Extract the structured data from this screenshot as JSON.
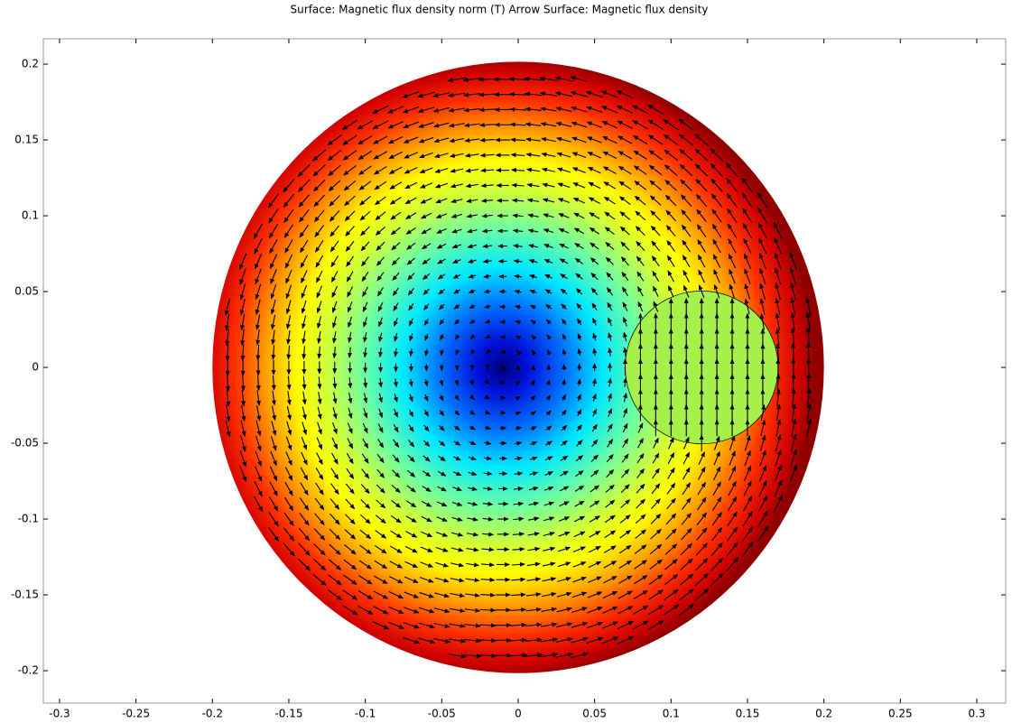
{
  "chart_data": {
    "type": "surface",
    "title": "Surface: Magnetic flux density norm (T)  Arrow Surface: Magnetic flux density",
    "xlim": [
      -0.3106,
      0.3189
    ],
    "ylim": [
      -0.2214,
      0.2167
    ],
    "xticks": [
      -0.3,
      -0.25,
      -0.2,
      -0.15,
      -0.1,
      -0.05,
      0,
      0.05,
      0.1,
      0.15,
      0.2,
      0.25,
      0.3
    ],
    "yticks": [
      -0.2,
      -0.15,
      -0.1,
      -0.05,
      0,
      0.05,
      0.1,
      0.15,
      0.2
    ],
    "domains": [
      {
        "cx": 0,
        "cy": 0,
        "r": 0.2
      },
      {
        "cx": 0.12,
        "cy": 0,
        "r": 0.05
      }
    ],
    "field_minimum": [
      -0.01,
      0
    ]
  }
}
